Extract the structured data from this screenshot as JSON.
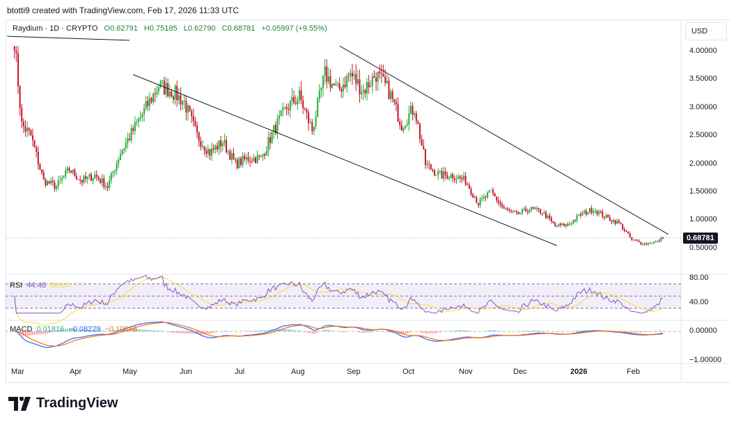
{
  "credit": "btotti9 created with TradingView.com, Feb 17, 2026 11:33 UTC",
  "legend": {
    "symbol": "Raydium · 1D · CRYPTO",
    "open": "O0.62791",
    "high": "H0.75185",
    "low": "L0.62790",
    "close": "C0.68781",
    "change": "+0.05997 (+9.55%)"
  },
  "currency": "USD",
  "last_price": "0.68781",
  "rsi": {
    "label": "RSI",
    "value": "44.46",
    "ma": "30.65",
    "axis": [
      "80.00",
      "40.00"
    ]
  },
  "macd": {
    "label": "MACD",
    "hist": "0.01816",
    "macd": "−0.08229",
    "signal": "−0.10046",
    "axis": [
      "0.00000",
      "−1.00000"
    ]
  },
  "logo": "TradingView",
  "colors": {
    "up": "#089981",
    "down": "#f23645",
    "candle_up": "#22ab34",
    "candle_down": "#c8102e",
    "rsi": "#7e57c2",
    "rsi_ma": "#fdd835",
    "macd": "#2962ff",
    "signal": "#ff6d00"
  },
  "chart_data": {
    "type": "candlestick",
    "ylim": [
      0.2,
      4.3
    ],
    "y_ticks": [
      "4.00000",
      "3.50000",
      "3.00000",
      "2.50000",
      "2.00000",
      "1.50000",
      "1.00000",
      "0.50000"
    ],
    "x_ticks": [
      "Mar",
      "Apr",
      "May",
      "Jun",
      "Jul",
      "Aug",
      "Sep",
      "Oct",
      "Nov",
      "Dec",
      "2026",
      "Feb"
    ],
    "approx_weekly_close": [
      [
        "2025-02-27",
        4.2
      ],
      [
        "2025-03-03",
        2.7
      ],
      [
        "2025-03-08",
        2.5
      ],
      [
        "2025-03-15",
        1.7
      ],
      [
        "2025-03-22",
        1.6
      ],
      [
        "2025-03-29",
        1.9
      ],
      [
        "2025-04-05",
        1.7
      ],
      [
        "2025-04-12",
        1.8
      ],
      [
        "2025-04-19",
        1.6
      ],
      [
        "2025-04-26",
        2.2
      ],
      [
        "2025-05-03",
        2.6
      ],
      [
        "2025-05-10",
        3.0
      ],
      [
        "2025-05-17",
        3.4
      ],
      [
        "2025-05-24",
        3.3
      ],
      [
        "2025-05-31",
        3.1
      ],
      [
        "2025-06-07",
        2.5
      ],
      [
        "2025-06-14",
        2.2
      ],
      [
        "2025-06-21",
        2.4
      ],
      [
        "2025-06-28",
        2.0
      ],
      [
        "2025-07-05",
        2.1
      ],
      [
        "2025-07-12",
        2.1
      ],
      [
        "2025-07-19",
        2.6
      ],
      [
        "2025-07-26",
        3.0
      ],
      [
        "2025-08-02",
        3.2
      ],
      [
        "2025-08-09",
        2.6
      ],
      [
        "2025-08-16",
        3.6
      ],
      [
        "2025-08-23",
        3.3
      ],
      [
        "2025-08-30",
        3.6
      ],
      [
        "2025-09-06",
        3.3
      ],
      [
        "2025-09-13",
        3.6
      ],
      [
        "2025-09-20",
        3.3
      ],
      [
        "2025-09-27",
        2.7
      ],
      [
        "2025-10-04",
        3.0
      ],
      [
        "2025-10-10",
        2.0
      ],
      [
        "2025-10-18",
        1.8
      ],
      [
        "2025-10-25",
        1.8
      ],
      [
        "2025-11-01",
        1.7
      ],
      [
        "2025-11-08",
        1.3
      ],
      [
        "2025-11-15",
        1.5
      ],
      [
        "2025-11-22",
        1.2
      ],
      [
        "2025-11-29",
        1.1
      ],
      [
        "2025-12-06",
        1.2
      ],
      [
        "2025-12-13",
        1.15
      ],
      [
        "2025-12-20",
        0.9
      ],
      [
        "2025-12-27",
        0.92
      ],
      [
        "2026-01-03",
        1.1
      ],
      [
        "2026-01-10",
        1.2
      ],
      [
        "2026-01-17",
        1.05
      ],
      [
        "2026-01-24",
        0.95
      ],
      [
        "2026-01-31",
        0.65
      ],
      [
        "2026-02-07",
        0.58
      ],
      [
        "2026-02-14",
        0.62
      ],
      [
        "2026-02-17",
        0.68781
      ]
    ],
    "trendlines": [
      [
        [
          "2025-02-23",
          4.27
        ],
        [
          "2025-05-01",
          4.2
        ]
      ],
      [
        [
          "2025-08-24",
          4.1
        ],
        [
          "2026-02-20",
          0.75
        ]
      ],
      [
        [
          "2025-05-03",
          3.59
        ],
        [
          "2025-12-21",
          0.55
        ]
      ]
    ]
  }
}
